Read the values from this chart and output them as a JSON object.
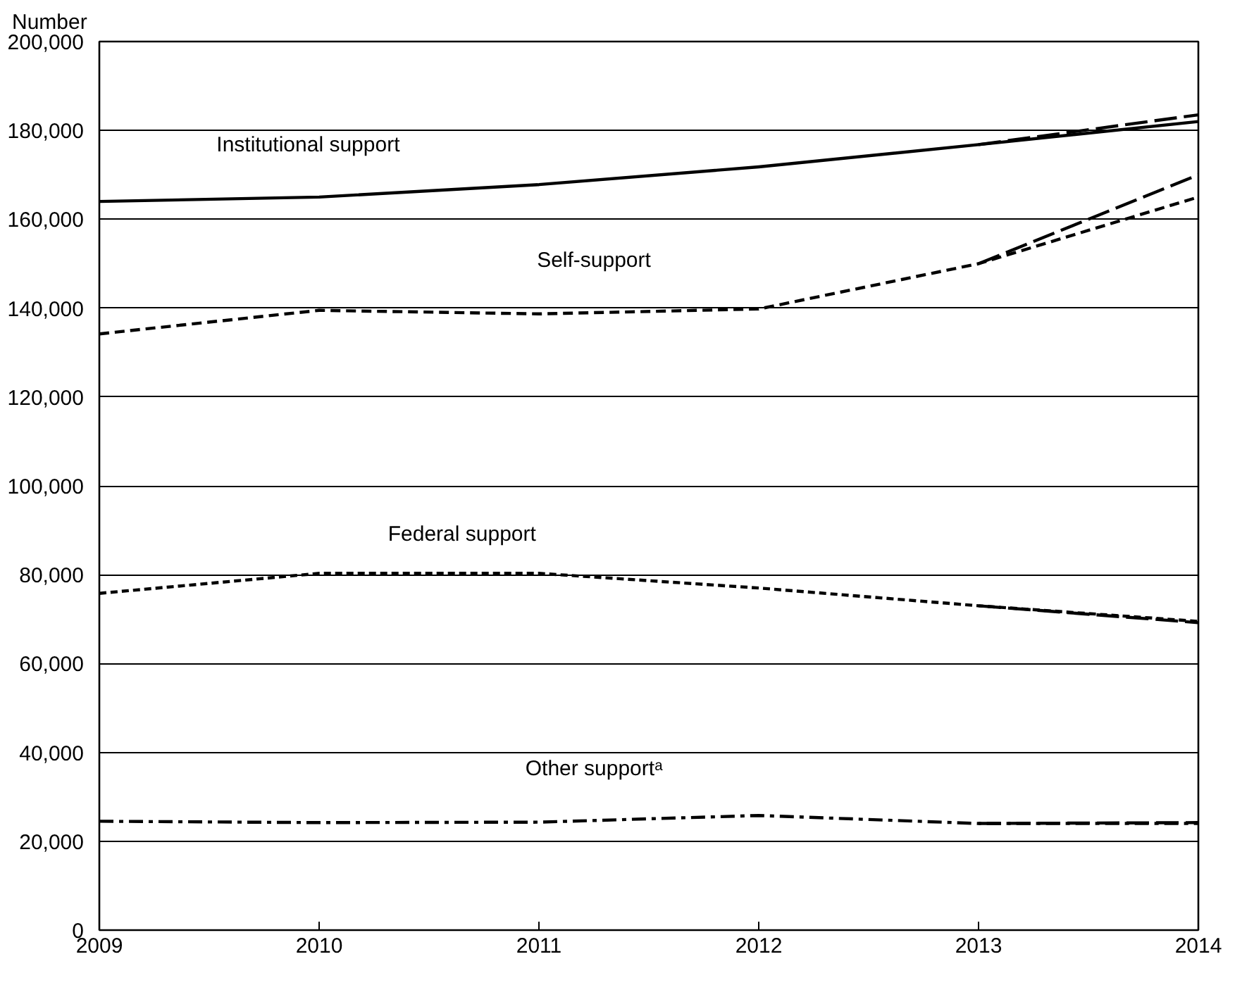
{
  "chart_data": {
    "type": "line",
    "ylabel": "Number",
    "x": [
      2009,
      2010,
      2011,
      2012,
      2013,
      2014
    ],
    "series": [
      {
        "name": "Institutional support",
        "color": "#000000",
        "line_style": "solid",
        "values": [
          164000,
          165000,
          167800,
          171800,
          176800,
          182000
        ]
      },
      {
        "color": "#000000",
        "line_style": "longdash",
        "values": [
          null,
          null,
          null,
          null,
          176800,
          183500
        ]
      },
      {
        "name": "Self-support",
        "color": "#000000",
        "line_style": "dashed",
        "values": [
          134200,
          139500,
          138700,
          139800,
          150000,
          165000
        ]
      },
      {
        "color": "#000000",
        "line_style": "longdash",
        "values": [
          null,
          null,
          null,
          null,
          150000,
          170000
        ]
      },
      {
        "name": "Federal support",
        "color": "#000000",
        "line_style": "dotted",
        "values": [
          75800,
          80300,
          80300,
          77000,
          73000,
          69500
        ]
      },
      {
        "color": "#000000",
        "line_style": "longdash",
        "values": [
          null,
          null,
          null,
          null,
          73000,
          69200
        ]
      },
      {
        "name": "Other supportᵃ",
        "color": "#000000",
        "line_style": "dashdot",
        "values": [
          24500,
          24200,
          24300,
          25800,
          24000,
          24000
        ]
      },
      {
        "color": "#000000",
        "line_style": "longdash",
        "values": [
          null,
          null,
          null,
          null,
          24000,
          24200
        ]
      }
    ],
    "xlim": [
      2009,
      2014
    ],
    "xticks": [
      2009,
      2010,
      2011,
      2012,
      2013,
      2014
    ],
    "ylim": [
      0,
      200000
    ],
    "yticks": [
      {
        "value": 0,
        "label": "0"
      },
      {
        "value": 20000,
        "label": "20,000"
      },
      {
        "value": 40000,
        "label": "40,000"
      },
      {
        "value": 60000,
        "label": "60,000"
      },
      {
        "value": 80000,
        "label": "80,000"
      },
      {
        "value": 100000,
        "label": "100,000"
      },
      {
        "value": 120000,
        "label": "120,000"
      },
      {
        "value": 140000,
        "label": "140,000"
      },
      {
        "value": 160000,
        "label": "160,000"
      },
      {
        "value": 180000,
        "label": "180,000"
      },
      {
        "value": 200000,
        "label": "200,000"
      }
    ],
    "grid": "y"
  }
}
